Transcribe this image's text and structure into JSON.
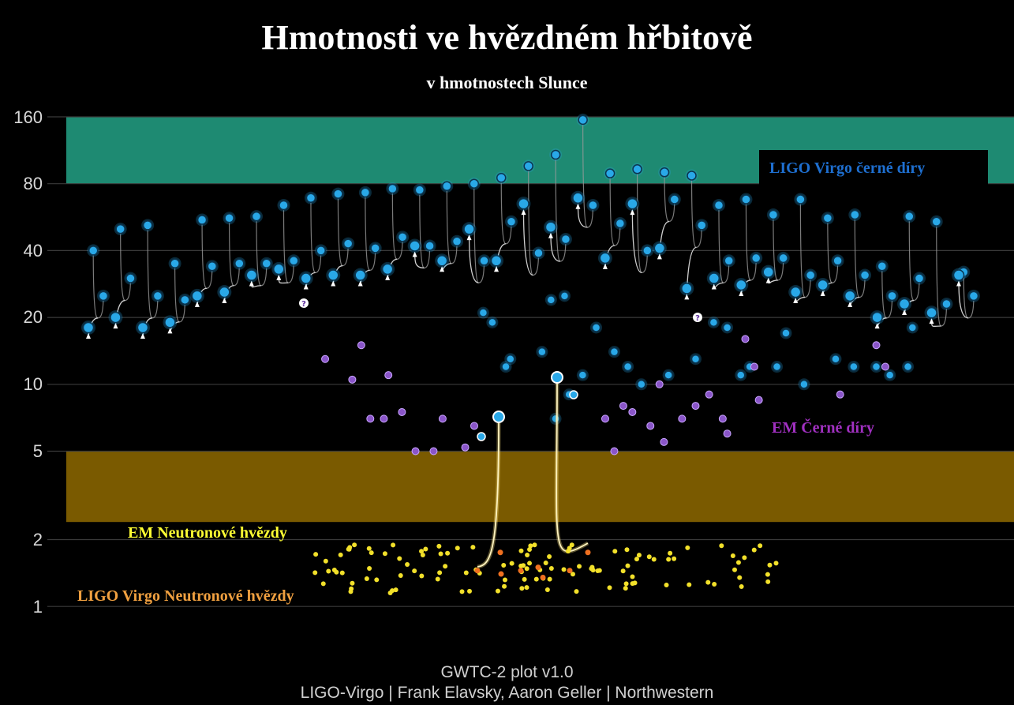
{
  "chart_data": {
    "type": "scatter",
    "title": "Hmotnosti ve hvězdném hřbitově",
    "subtitle": "v hmotnostech Slunce",
    "yscale": "log2",
    "ylim": [
      1,
      160
    ],
    "yticks": [
      "160",
      "80",
      "40",
      "20",
      "10",
      "5",
      "2",
      "1"
    ],
    "bands": [
      {
        "label": "LIGO Virgo černé díry",
        "range": [
          80,
          160
        ],
        "color": "#1e8a72",
        "label_color": "#1e6fd0"
      },
      {
        "label": "EM Neutronové hvězdy",
        "range": [
          2.4,
          5
        ],
        "color": "#7a5a00",
        "label_color": "#ffff33"
      }
    ],
    "legend_labels": [
      {
        "text": "LIGO Virgo černé díry",
        "color": "#1e6fd0"
      },
      {
        "text": "EM Černé díry",
        "color": "#a030c0"
      },
      {
        "text": "EM Neutronové hvězdy",
        "color": "#ffff33"
      },
      {
        "text": "LIGO Virgo Neutronové hvězdy",
        "color": "#f0a040"
      }
    ],
    "series": [
      {
        "kind": "LIGO Virgo black hole mergers",
        "color": "#29a8e8",
        "mergers": [
          {
            "m1": 40,
            "m2": 25,
            "final": 18
          },
          {
            "m1": 50,
            "m2": 30,
            "final": 20
          },
          {
            "m1": 52,
            "m2": 25,
            "final": 18
          },
          {
            "m1": 35,
            "m2": 24,
            "final": 19
          },
          {
            "m1": 55,
            "m2": 34,
            "final": 25
          },
          {
            "m1": 56,
            "m2": 35,
            "final": 26
          },
          {
            "m1": 57,
            "m2": 35,
            "final": 31
          },
          {
            "m1": 64,
            "m2": 36,
            "final": 33
          },
          {
            "m1": 69,
            "m2": 40,
            "final": 30
          },
          {
            "m1": 72,
            "m2": 43,
            "final": 31
          },
          {
            "m1": 73,
            "m2": 41,
            "final": 31
          },
          {
            "m1": 76,
            "m2": 46,
            "final": 33
          },
          {
            "m1": 75,
            "m2": 42,
            "final": 42
          },
          {
            "m1": 78,
            "m2": 44,
            "final": 36
          },
          {
            "m1": 80,
            "m2": 36,
            "final": 50
          },
          {
            "m1": 85,
            "m2": 54,
            "final": 36
          },
          {
            "m1": 96,
            "m2": 39,
            "final": 65
          },
          {
            "m1": 108,
            "m2": 45,
            "final": 51
          },
          {
            "m1": 155,
            "m2": 64,
            "final": 69
          },
          {
            "m1": 89,
            "m2": 53,
            "final": 37
          },
          {
            "m1": 93,
            "m2": 40,
            "final": 65
          },
          {
            "m1": 90,
            "m2": 68,
            "final": 41
          },
          {
            "m1": 87,
            "m2": 52,
            "final": 27
          },
          {
            "m1": 64,
            "m2": 36,
            "final": 30
          },
          {
            "m1": 68,
            "m2": 37,
            "final": 28
          },
          {
            "m1": 58,
            "m2": 37,
            "final": 32
          },
          {
            "m1": 68,
            "m2": 31,
            "final": 26
          },
          {
            "m1": 56,
            "m2": 36,
            "final": 28
          },
          {
            "m1": 58,
            "m2": 31,
            "final": 25
          },
          {
            "m1": 34,
            "m2": 25,
            "final": 20
          },
          {
            "m1": 57,
            "m2": 30,
            "final": 23
          },
          {
            "m1": 54,
            "m2": 23,
            "final": 21
          },
          {
            "m1": 32,
            "m2": 25,
            "final": 31
          }
        ],
        "points": [
          {
            "x": 0.475,
            "y": 19
          },
          {
            "x": 0.49,
            "y": 12
          },
          {
            "x": 0.53,
            "y": 14
          },
          {
            "x": 0.465,
            "y": 21
          },
          {
            "x": 0.495,
            "y": 13
          },
          {
            "x": 0.54,
            "y": 24
          },
          {
            "x": 0.555,
            "y": 25
          },
          {
            "x": 0.575,
            "y": 11
          },
          {
            "x": 0.56,
            "y": 9
          },
          {
            "x": 0.545,
            "y": 7
          },
          {
            "x": 0.59,
            "y": 18
          },
          {
            "x": 0.61,
            "y": 14
          },
          {
            "x": 0.625,
            "y": 12
          },
          {
            "x": 0.64,
            "y": 10
          },
          {
            "x": 0.67,
            "y": 11
          },
          {
            "x": 0.7,
            "y": 13
          },
          {
            "x": 0.72,
            "y": 19
          },
          {
            "x": 0.735,
            "y": 18
          },
          {
            "x": 0.75,
            "y": 11
          },
          {
            "x": 0.76,
            "y": 12
          },
          {
            "x": 0.79,
            "y": 12
          },
          {
            "x": 0.8,
            "y": 17
          },
          {
            "x": 0.82,
            "y": 10
          },
          {
            "x": 0.855,
            "y": 13
          },
          {
            "x": 0.875,
            "y": 12
          },
          {
            "x": 0.9,
            "y": 12
          },
          {
            "x": 0.915,
            "y": 11
          },
          {
            "x": 0.935,
            "y": 12
          },
          {
            "x": 0.94,
            "y": 18
          }
        ]
      },
      {
        "kind": "EM black holes",
        "color": "#9a60d8",
        "points": [
          {
            "x": 0.29,
            "y": 13
          },
          {
            "x": 0.32,
            "y": 10.5
          },
          {
            "x": 0.33,
            "y": 15
          },
          {
            "x": 0.34,
            "y": 7
          },
          {
            "x": 0.355,
            "y": 7
          },
          {
            "x": 0.36,
            "y": 11
          },
          {
            "x": 0.375,
            "y": 7.5
          },
          {
            "x": 0.39,
            "y": 5
          },
          {
            "x": 0.41,
            "y": 5
          },
          {
            "x": 0.42,
            "y": 7
          },
          {
            "x": 0.445,
            "y": 5.2
          },
          {
            "x": 0.455,
            "y": 6.5
          },
          {
            "x": 0.62,
            "y": 8
          },
          {
            "x": 0.63,
            "y": 7.5
          },
          {
            "x": 0.65,
            "y": 6.5
          },
          {
            "x": 0.66,
            "y": 10
          },
          {
            "x": 0.665,
            "y": 5.5
          },
          {
            "x": 0.7,
            "y": 8
          },
          {
            "x": 0.715,
            "y": 9
          },
          {
            "x": 0.73,
            "y": 7
          },
          {
            "x": 0.735,
            "y": 6
          },
          {
            "x": 0.755,
            "y": 16
          },
          {
            "x": 0.765,
            "y": 12
          },
          {
            "x": 0.77,
            "y": 8.5
          },
          {
            "x": 0.685,
            "y": 7
          },
          {
            "x": 0.86,
            "y": 9
          },
          {
            "x": 0.9,
            "y": 15
          },
          {
            "x": 0.91,
            "y": 12
          },
          {
            "x": 0.61,
            "y": 5
          },
          {
            "x": 0.6,
            "y": 7
          }
        ]
      },
      {
        "kind": "EM neutron stars",
        "color": "#f2e02a",
        "points_count": 120
      },
      {
        "kind": "LIGO Virgo neutron stars",
        "color": "#f07020",
        "points_count": 8
      }
    ]
  },
  "footer": {
    "line1": "GWTC-2 plot v1.0",
    "line2": "LIGO-Virgo | Frank Elavsky, Aaron Geller | Northwestern"
  }
}
